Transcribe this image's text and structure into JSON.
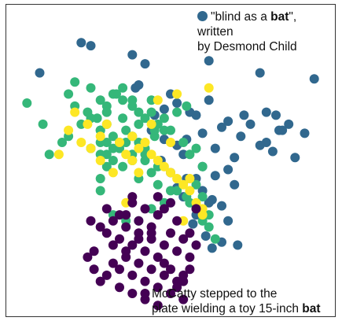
{
  "chart_data": {
    "type": "scatter",
    "title": "",
    "xlabel": "",
    "ylabel": "",
    "xlim": [
      0,
      100
    ],
    "ylim": [
      0,
      100
    ],
    "grid": false,
    "legend": "none",
    "colors": {
      "blue": "#31688e",
      "green": "#35b779",
      "yellow": "#fde725",
      "purple": "#440154"
    },
    "series": [
      {
        "color_key": "blue",
        "x": [
          22,
          25,
          9,
          39,
          42,
          40,
          38,
          62,
          78,
          95,
          83,
          87,
          92,
          84,
          80,
          68,
          73,
          75,
          85,
          82,
          89,
          78,
          72,
          80,
          60,
          66,
          55,
          64,
          70,
          58,
          62,
          50,
          52,
          45,
          48,
          44,
          56,
          60,
          54,
          47,
          50,
          58,
          52,
          48,
          64,
          68,
          70,
          62,
          61,
          66,
          57,
          63,
          55,
          60,
          58,
          66,
          54,
          52,
          63,
          68,
          71
        ],
        "y": [
          89,
          88,
          79,
          74,
          82,
          75,
          85,
          83,
          79,
          77,
          65,
          62,
          59,
          60,
          56,
          63,
          65,
          62,
          60,
          53,
          51,
          55,
          58,
          66,
          59,
          61,
          57,
          54,
          51,
          65,
          70,
          72,
          69,
          65,
          67,
          60,
          66,
          48,
          52,
          50,
          46,
          44,
          55,
          57,
          45,
          47,
          42,
          36,
          25,
          23,
          29,
          21,
          44,
          40,
          32,
          35,
          38,
          41,
          37,
          30,
          22
        ]
      },
      {
        "color_key": "green",
        "x": [
          5,
          10,
          20,
          18,
          25,
          28,
          30,
          32,
          35,
          38,
          30,
          27,
          24,
          22,
          28,
          32,
          36,
          40,
          42,
          44,
          38,
          35,
          33,
          30,
          28,
          25,
          20,
          18,
          16,
          12,
          28,
          32,
          36,
          40,
          45,
          48,
          42,
          38,
          35,
          32,
          30,
          28,
          40,
          44,
          46,
          50,
          55,
          58,
          60,
          62,
          56,
          52,
          48,
          44,
          40,
          36,
          32,
          28,
          25,
          28,
          30,
          35,
          40,
          45,
          38,
          34,
          30,
          42,
          46,
          50,
          54,
          58,
          55,
          52,
          48,
          44,
          58,
          60,
          62,
          64,
          60,
          56,
          30,
          34,
          38,
          42,
          46
        ],
        "y": [
          69,
          62,
          76,
          72,
          74,
          70,
          68,
          72,
          74,
          68,
          66,
          64,
          66,
          62,
          60,
          58,
          60,
          62,
          64,
          66,
          70,
          70,
          72,
          62,
          56,
          54,
          68,
          58,
          56,
          52,
          52,
          54,
          56,
          56,
          58,
          60,
          52,
          50,
          48,
          50,
          48,
          44,
          44,
          46,
          42,
          40,
          38,
          34,
          30,
          32,
          36,
          40,
          36,
          34,
          30,
          30,
          32,
          40,
          64,
          60,
          66,
          64,
          66,
          60,
          58,
          56,
          52,
          54,
          62,
          60,
          56,
          54,
          68,
          66,
          64,
          70,
          42,
          38,
          28,
          24,
          48,
          52,
          56,
          54,
          52,
          50,
          48
        ]
      },
      {
        "color_key": "yellow",
        "x": [
          15,
          18,
          22,
          25,
          28,
          30,
          34,
          36,
          38,
          40,
          42,
          44,
          46,
          48,
          50,
          52,
          54,
          56,
          58,
          60,
          50,
          44,
          38,
          32,
          28,
          24,
          20,
          46,
          52,
          56,
          60,
          54,
          62,
          40,
          36
        ],
        "y": [
          52,
          60,
          56,
          54,
          58,
          62,
          56,
          52,
          50,
          54,
          56,
          52,
          50,
          48,
          46,
          44,
          42,
          40,
          36,
          34,
          56,
          62,
          58,
          46,
          50,
          62,
          66,
          70,
          72,
          44,
          32,
          30,
          74,
          46,
          36
        ],
        "note": ""
      },
      {
        "color_key": "purple",
        "x": [
          25,
          28,
          30,
          32,
          34,
          36,
          38,
          40,
          42,
          44,
          46,
          48,
          50,
          52,
          54,
          56,
          58,
          48,
          44,
          40,
          36,
          32,
          30,
          28,
          26,
          34,
          38,
          42,
          46,
          50,
          54,
          36,
          40,
          44,
          48,
          52,
          56,
          58,
          32,
          34,
          38,
          42,
          46,
          50,
          54,
          38,
          42,
          46,
          50,
          44,
          40,
          36,
          48,
          52,
          56,
          30,
          34,
          24,
          26,
          46,
          52,
          54,
          42,
          38
        ],
        "y": [
          30,
          28,
          26,
          30,
          24,
          28,
          22,
          26,
          20,
          24,
          18,
          22,
          26,
          20,
          24,
          18,
          22,
          12,
          14,
          16,
          18,
          16,
          12,
          10,
          20,
          14,
          12,
          10,
          8,
          6,
          10,
          32,
          30,
          28,
          34,
          30,
          26,
          34,
          22,
          8,
          6,
          4,
          2,
          14,
          12,
          36,
          34,
          38,
          36,
          26,
          24,
          20,
          16,
          10,
          14,
          34,
          32,
          18,
          14,
          32,
          8,
          4,
          6,
          38
        ]
      }
    ],
    "annotations": [
      {
        "id": "top",
        "marker_color_key": "blue",
        "text_parts": [
          {
            "text": "\"blind as a ",
            "bold": false
          },
          {
            "text": "bat",
            "bold": true
          },
          {
            "text": "\", written",
            "bold": false
          },
          {
            "text": "by Desmond Child",
            "bold": false,
            "newline_before": true
          }
        ]
      },
      {
        "id": "bottom",
        "text_parts": [
          {
            "text": "McCatty stepped to the",
            "bold": false
          },
          {
            "text": "plate wielding a toy 15-inch ",
            "bold": false,
            "newline_before": true
          },
          {
            "text": "bat",
            "bold": true
          }
        ]
      }
    ]
  }
}
